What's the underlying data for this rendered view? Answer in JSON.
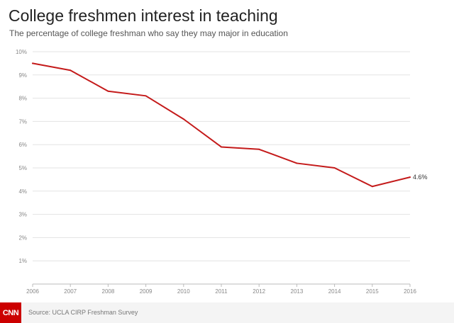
{
  "header": {
    "title": "College freshmen interest in teaching",
    "subtitle": "The percentage of college freshman who say they may major in education"
  },
  "footer": {
    "logo_text": "CNN",
    "source": "Source: UCLA CIRP Freshman Survey"
  },
  "colors": {
    "line": "#c41a1a",
    "grid": "#e3e3e3",
    "axis": "#bbbbbb",
    "tick_text": "#888888",
    "logo": "#cc0000"
  },
  "chart_data": {
    "type": "line",
    "title": "College freshmen interest in teaching",
    "subtitle": "The percentage of college freshman who say they may major in education",
    "x": [
      2006,
      2007,
      2008,
      2009,
      2010,
      2011,
      2012,
      2013,
      2014,
      2015,
      2016
    ],
    "x_tick_labels": [
      "2006",
      "2007",
      "2008",
      "2009",
      "2010",
      "2011",
      "2012",
      "2013",
      "2014",
      "2015",
      "2016"
    ],
    "series": [
      {
        "values": [
          9.5,
          9.2,
          8.3,
          8.1,
          7.1,
          5.9,
          5.8,
          5.2,
          5.0,
          4.2,
          4.6
        ]
      }
    ],
    "y_ticks": [
      1,
      2,
      3,
      4,
      5,
      6,
      7,
      8,
      9,
      10
    ],
    "y_tick_labels": [
      "1%",
      "2%",
      "3%",
      "4%",
      "5%",
      "6%",
      "7%",
      "8%",
      "9%",
      "10%"
    ],
    "ylim": [
      0,
      10
    ],
    "xlim": [
      2006,
      2016
    ],
    "grid": true,
    "annotations": [
      {
        "x": 2016,
        "y": 4.6,
        "text": "4.6%"
      }
    ]
  }
}
